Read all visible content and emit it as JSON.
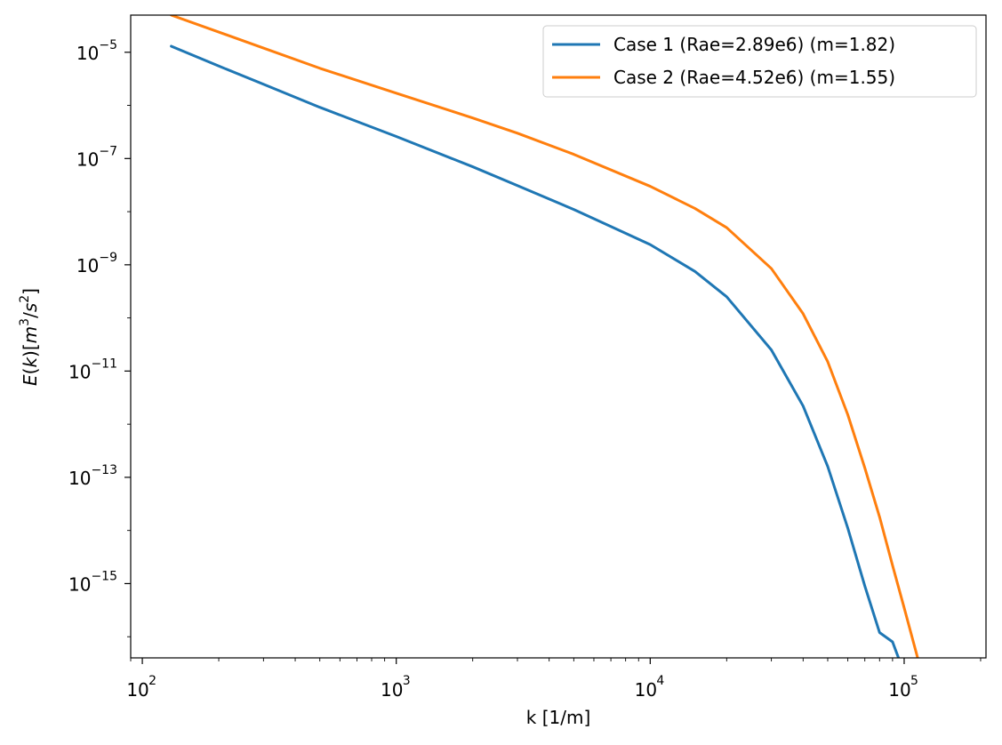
{
  "chart_data": {
    "type": "line",
    "title": "",
    "xlabel": "k [1/m]",
    "ylabel": "E(k)[m^3/s^2]",
    "xscale": "log",
    "yscale": "log",
    "xlim": [
      90,
      210000
    ],
    "ylim": [
      4e-17,
      5e-05
    ],
    "grid": false,
    "legend_position": "top-right",
    "x_ticks": [
      {
        "value": 100,
        "base": "10",
        "exp": "2"
      },
      {
        "value": 1000,
        "base": "10",
        "exp": "3"
      },
      {
        "value": 10000,
        "base": "10",
        "exp": "4"
      },
      {
        "value": 100000,
        "base": "10",
        "exp": "5"
      }
    ],
    "y_ticks": [
      {
        "value": 1e-05,
        "base": "10",
        "exp": "−5"
      },
      {
        "value": 1e-07,
        "base": "10",
        "exp": "−7"
      },
      {
        "value": 1e-09,
        "base": "10",
        "exp": "−9"
      },
      {
        "value": 1e-11,
        "base": "10",
        "exp": "−11"
      },
      {
        "value": 1e-13,
        "base": "10",
        "exp": "−13"
      },
      {
        "value": 1e-15,
        "base": "10",
        "exp": "−15"
      }
    ],
    "series": [
      {
        "name": "Case 1 (Rae=2.89e6) (m=1.82)",
        "color": "#1f77b4",
        "x": [
          130,
          200,
          300,
          500,
          1000,
          2000,
          3000,
          5000,
          10000,
          15000,
          20000,
          30000,
          40000,
          50000,
          60000,
          70000,
          80000,
          90000,
          95000
        ],
        "y": [
          1.3e-05,
          5.5e-06,
          2.5e-06,
          9.2e-07,
          2.6e-07,
          7e-08,
          3.1e-08,
          1.1e-08,
          2.4e-09,
          7.5e-10,
          2.5e-10,
          2.5e-11,
          2.2e-12,
          1.6e-13,
          1.1e-14,
          9e-16,
          1.2e-16,
          8e-17,
          4e-17
        ]
      },
      {
        "name": "Case 2 (Rae=4.52e6) (m=1.55)",
        "color": "#ff7f0e",
        "x": [
          130,
          200,
          300,
          500,
          1000,
          2000,
          3000,
          5000,
          10000,
          15000,
          20000,
          30000,
          40000,
          50000,
          60000,
          70000,
          80000,
          90000,
          100000,
          113000
        ],
        "y": [
          5e-05,
          2.4e-05,
          1.2e-05,
          5e-06,
          1.7e-06,
          5.8e-07,
          3e-07,
          1.2e-07,
          3e-08,
          1.15e-08,
          5e-09,
          8.5e-10,
          1.2e-10,
          1.5e-11,
          1.5e-12,
          1.5e-13,
          1.8e-14,
          2.2e-15,
          3.5e-16,
          4e-17
        ]
      }
    ]
  }
}
